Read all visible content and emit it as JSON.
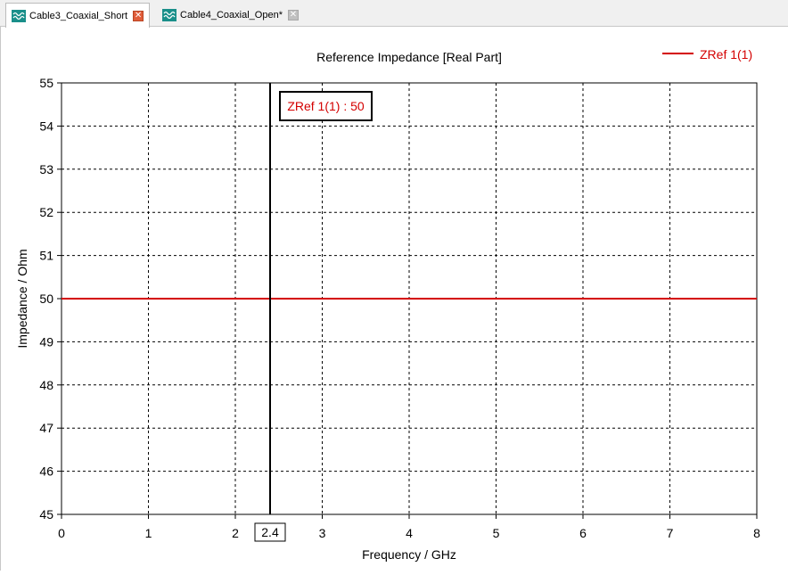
{
  "tabs": [
    {
      "label": "Cable3_Coaxial_Short",
      "active": true,
      "icon": "waveform-icon"
    },
    {
      "label": "Cable4_Coaxial_Open*",
      "active": false,
      "icon": "waveform-icon"
    }
  ],
  "colors": {
    "series": "#d40000",
    "marker": "#000000",
    "grid": "#000000"
  },
  "chart_data": {
    "type": "line",
    "title": "Reference Impedance [Real Part]",
    "xlabel": "Frequency / GHz",
    "ylabel": "Impedance / Ohm",
    "xlim": [
      0,
      8
    ],
    "ylim": [
      45,
      55
    ],
    "xticks": [
      0,
      1,
      2,
      3,
      4,
      5,
      6,
      7,
      8
    ],
    "yticks": [
      45,
      46,
      47,
      48,
      49,
      50,
      51,
      52,
      53,
      54,
      55
    ],
    "grid": true,
    "legend": "top-right",
    "series": [
      {
        "name": "ZRef 1(1)",
        "x": [
          0,
          8
        ],
        "y": [
          50,
          50
        ]
      }
    ],
    "marker": {
      "x": 2.4,
      "x_label": "2.4",
      "annotation": "ZRef 1(1) : 50"
    }
  }
}
